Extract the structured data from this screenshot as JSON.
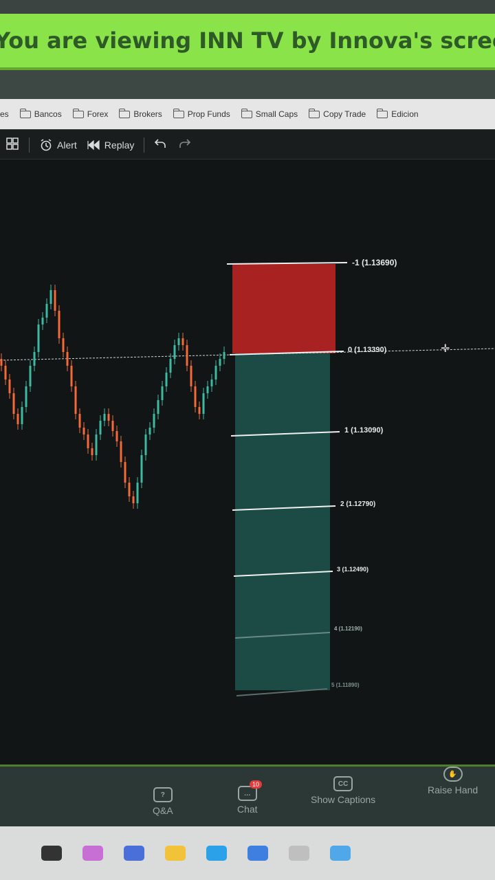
{
  "banner": {
    "text": "You are viewing  INN TV by Innova's screen"
  },
  "bookmarks": [
    {
      "label": "es"
    },
    {
      "label": "Bancos"
    },
    {
      "label": "Forex"
    },
    {
      "label": "Brokers"
    },
    {
      "label": "Prop Funds"
    },
    {
      "label": "Small Caps"
    },
    {
      "label": "Copy Trade"
    },
    {
      "label": "Edicion"
    }
  ],
  "toolbar": {
    "alert_label": "Alert",
    "replay_label": "Replay"
  },
  "chart": {
    "levels": [
      {
        "label": "-1 (1.13690)"
      },
      {
        "label": "0 (1.13390)"
      },
      {
        "label": "1 (1.13090)"
      },
      {
        "label": "2 (1.12790)"
      },
      {
        "label": "3 (1.12490)"
      },
      {
        "label": "4 (1.12190)"
      },
      {
        "label": "5 (1.11890)"
      }
    ],
    "colors": {
      "loss_zone": "#a82222",
      "profit_zone": "#1c4a44",
      "bull": "#3fb9a2",
      "bear": "#f46a3b"
    }
  },
  "zoom": {
    "qa_label": "Q&A",
    "chat_label": "Chat",
    "chat_badge": "10",
    "captions_label": "Show Captions",
    "captions_icon": "CC",
    "raise_hand_label": "Raise Hand"
  }
}
